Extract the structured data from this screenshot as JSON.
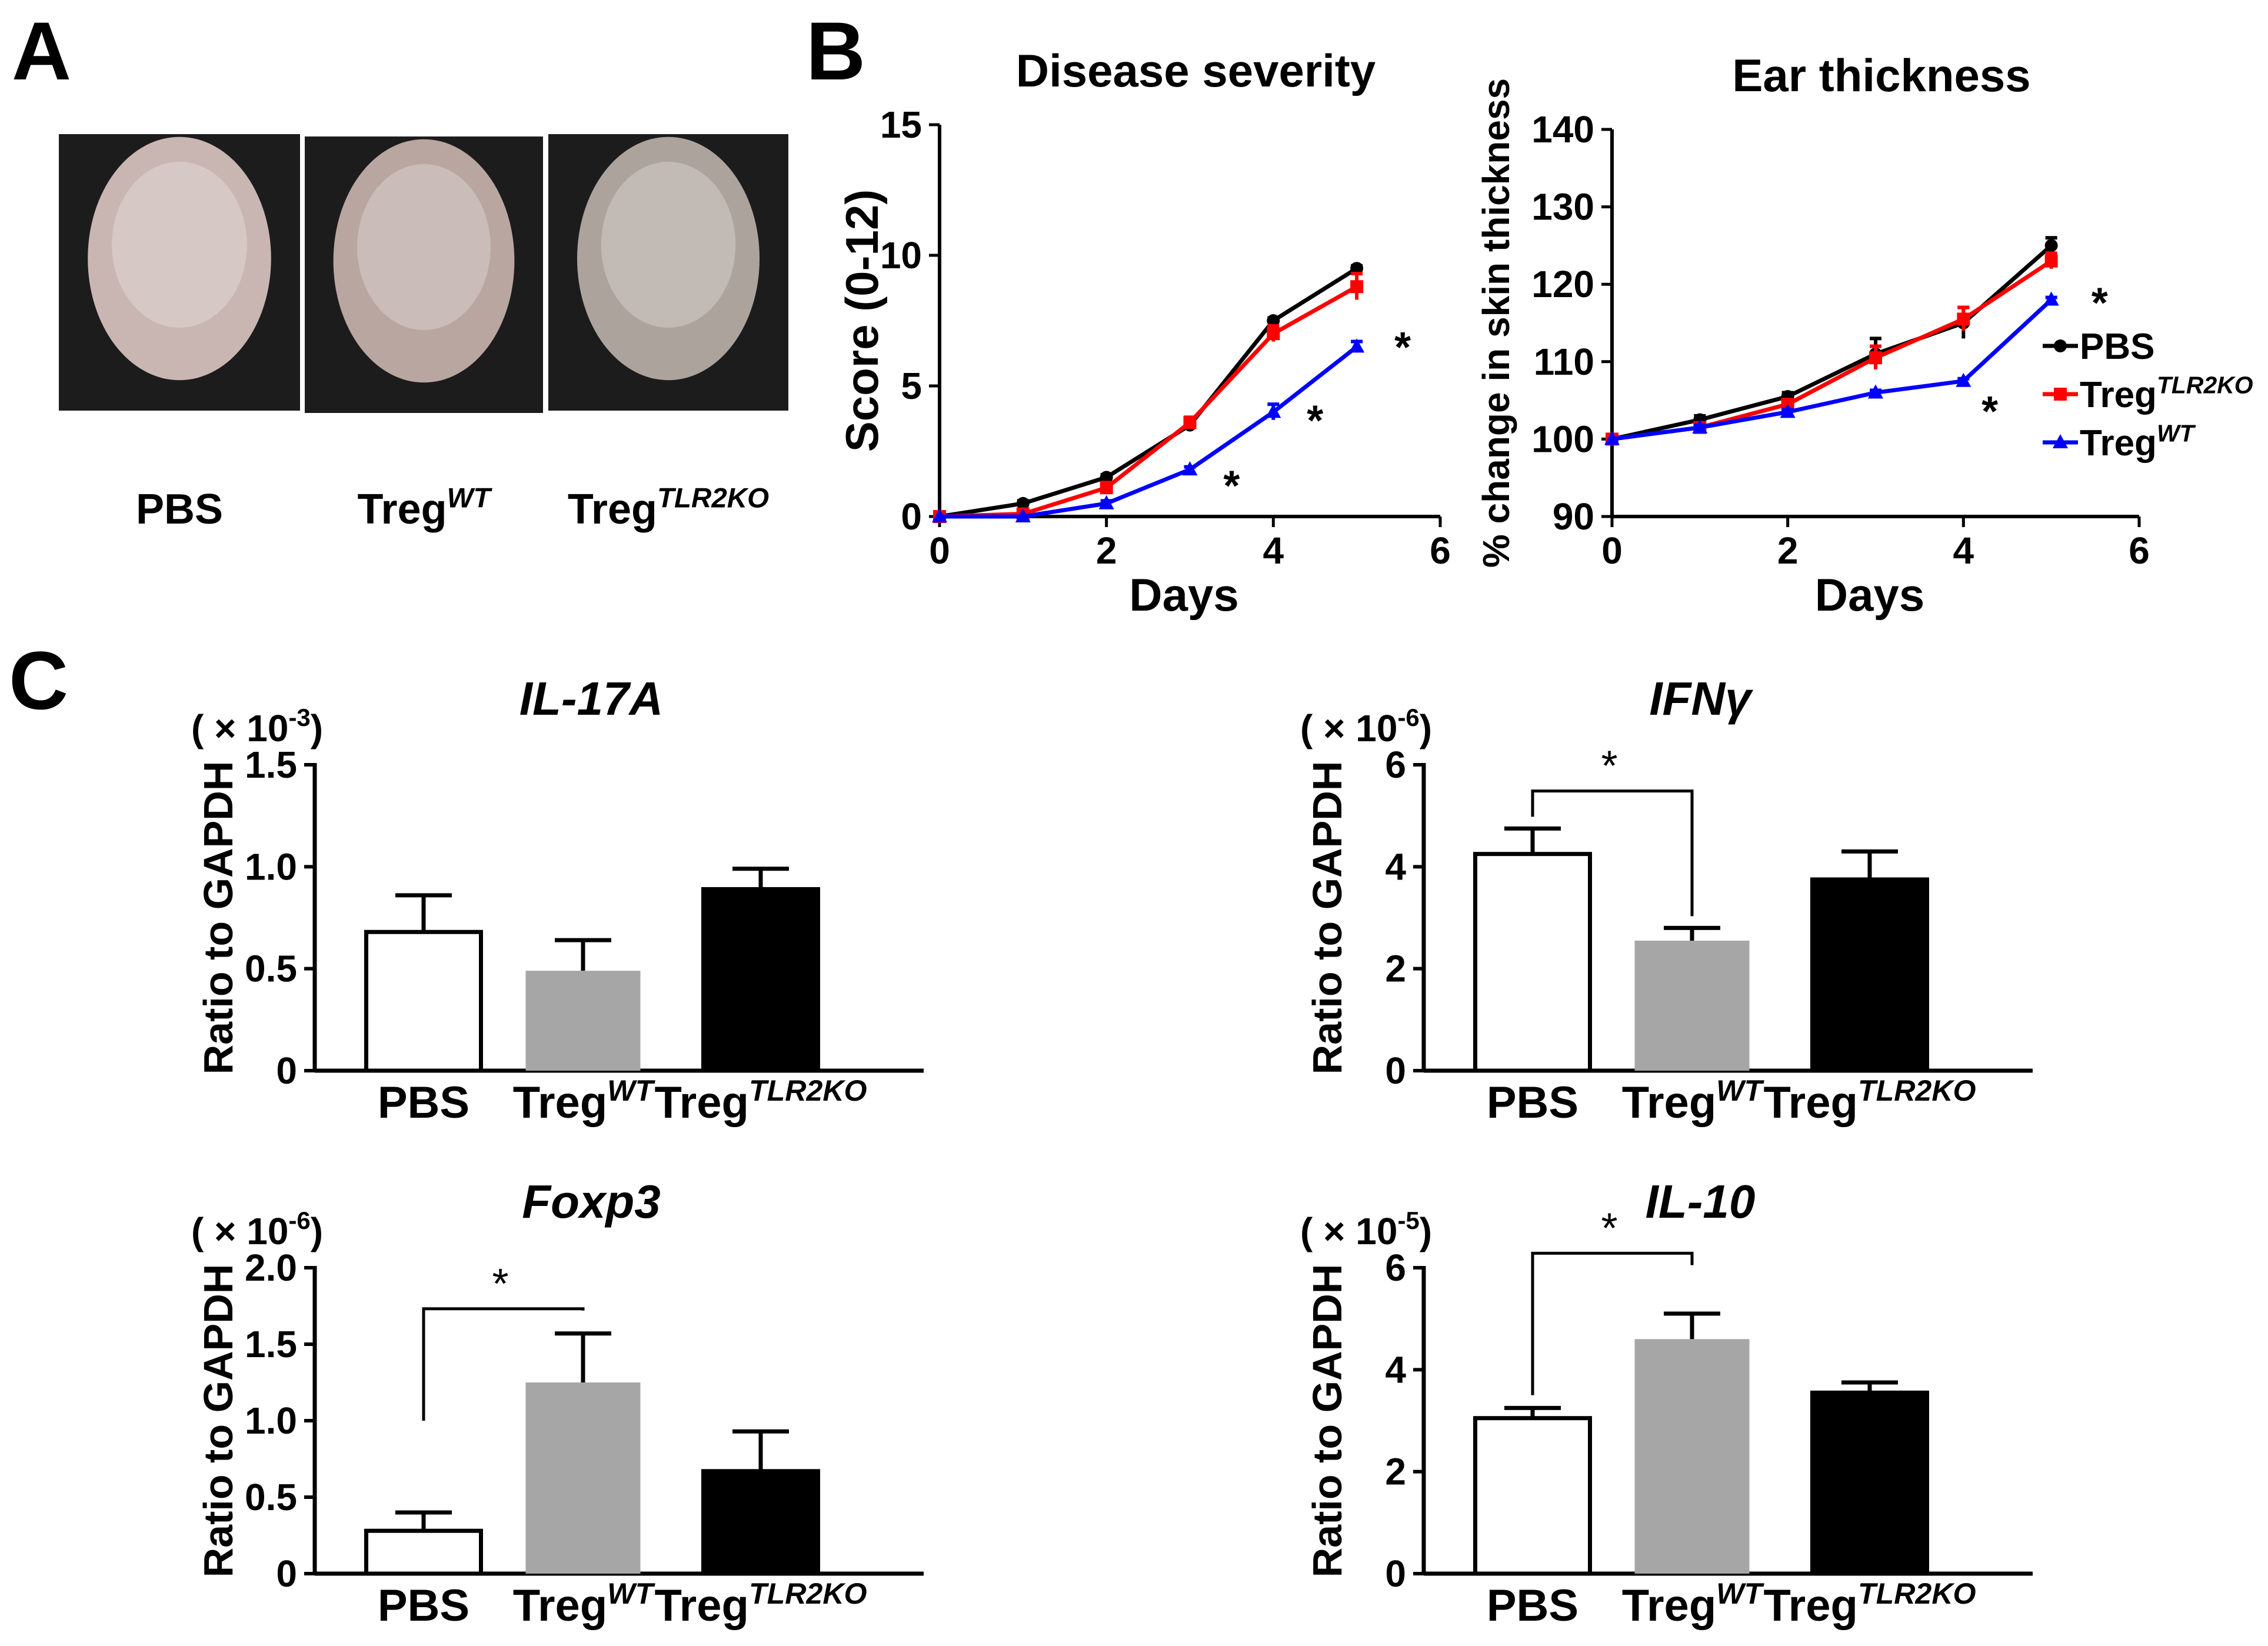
{
  "panel_labels": {
    "a": "A",
    "b": "B",
    "c": "C"
  },
  "panel_a": {
    "images": [
      {
        "label_main": "PBS",
        "label_sup": "",
        "skin": "#c9b6b2"
      },
      {
        "label_main": "Treg",
        "label_sup": "WT",
        "skin": "#b9a6a0"
      },
      {
        "label_main": "Treg",
        "label_sup": "TLR2KO",
        "skin": "#aca39d"
      }
    ]
  },
  "legend": [
    {
      "main": "PBS",
      "sup": "",
      "color": "#000000",
      "marker": "circle"
    },
    {
      "main": "Treg",
      "sup": "TLR2KO",
      "color": "#ff0000",
      "marker": "square"
    },
    {
      "main": "Treg",
      "sup": "WT",
      "color": "#0000ff",
      "marker": "triangle"
    }
  ],
  "chart_data": [
    {
      "type": "line",
      "title": "Disease severity",
      "xlabel": "Days",
      "ylabel": "Score (0-12)",
      "xlim": [
        0,
        6
      ],
      "ylim": [
        0,
        15
      ],
      "xticks": [
        0,
        2,
        4,
        6
      ],
      "yticks": [
        0,
        5,
        10,
        15
      ],
      "x": [
        0,
        1,
        2,
        3,
        4,
        5
      ],
      "series": [
        {
          "name": "PBS",
          "color": "#000000",
          "marker": "circle",
          "values": [
            0,
            0.5,
            1.5,
            3.5,
            7.5,
            9.5
          ],
          "err": [
            0,
            0.1,
            0.1,
            0.1,
            0.1,
            0.1
          ]
        },
        {
          "name": "TregTLR2KO",
          "color": "#ff0000",
          "marker": "square",
          "values": [
            0,
            0.1,
            1.1,
            3.6,
            7.0,
            8.8
          ],
          "err": [
            0,
            0.1,
            0.2,
            0.2,
            0.3,
            0.5
          ]
        },
        {
          "name": "TregWT",
          "color": "#0000ff",
          "marker": "triangle",
          "values": [
            0,
            0,
            0.5,
            1.8,
            4.0,
            6.5
          ],
          "err": [
            0,
            0,
            0.1,
            0.1,
            0.3,
            0.2
          ]
        }
      ],
      "annotations": [
        {
          "text": "*",
          "x": 3.5,
          "y": 1.3
        },
        {
          "text": "*",
          "x": 4.5,
          "y": 3.8
        },
        {
          "text": "*",
          "x": 5.55,
          "y": 6.6
        }
      ]
    },
    {
      "type": "line",
      "title": "Ear thickness",
      "xlabel": "Days",
      "ylabel": "% change in skin thickness",
      "xlim": [
        0,
        6
      ],
      "ylim": [
        90,
        140
      ],
      "xticks": [
        0,
        2,
        4,
        6
      ],
      "yticks": [
        90,
        100,
        110,
        120,
        130,
        140
      ],
      "x": [
        0,
        1,
        2,
        3,
        4,
        5
      ],
      "series": [
        {
          "name": "PBS",
          "color": "#000000",
          "marker": "circle",
          "values": [
            100,
            102.5,
            105.5,
            111,
            115,
            125
          ],
          "err": [
            0,
            0.5,
            0.5,
            2,
            2,
            1
          ]
        },
        {
          "name": "TregTLR2KO",
          "color": "#ff0000",
          "marker": "square",
          "values": [
            100,
            101.5,
            104.5,
            110.5,
            115.5,
            123
          ],
          "err": [
            0,
            0.5,
            0.5,
            1.5,
            1.5,
            1
          ]
        },
        {
          "name": "TregWT",
          "color": "#0000ff",
          "marker": "triangle",
          "values": [
            100,
            101.5,
            103.5,
            106,
            107.5,
            118
          ],
          "err": [
            0,
            0.3,
            0.3,
            0.3,
            0.3,
            0.3
          ]
        }
      ],
      "annotations": [
        {
          "text": "*",
          "x": 5.55,
          "y": 118
        },
        {
          "text": "*",
          "x": 4.3,
          "y": 104
        }
      ]
    },
    {
      "type": "bar",
      "title": "IL-17A",
      "multiplier_prefix": "( × 10",
      "multiplier_exp": "-3",
      "multiplier_suffix": ")",
      "ylabel": "Ratio to GAPDH",
      "ylim": [
        0,
        1.5
      ],
      "yticks": [
        0,
        0.5,
        1.0,
        1.5
      ],
      "ytick_labels": [
        "0",
        "0.5",
        "1.0",
        "1.5"
      ],
      "categories": [
        {
          "main": "PBS",
          "sup": ""
        },
        {
          "main": "Treg",
          "sup": "WT"
        },
        {
          "main": "Treg",
          "sup": "TLR2KO"
        }
      ],
      "values": [
        0.68,
        0.49,
        0.89
      ],
      "errors": [
        0.18,
        0.15,
        0.1
      ],
      "fills": [
        "#ffffff",
        "#a6a6a6",
        "#000000"
      ],
      "significance": []
    },
    {
      "type": "bar",
      "title": "IFNγ",
      "multiplier_prefix": "( × 10",
      "multiplier_exp": "-6",
      "multiplier_suffix": ")",
      "ylabel": "Ratio to GAPDH",
      "ylim": [
        0,
        6
      ],
      "yticks": [
        0,
        2,
        4,
        6
      ],
      "ytick_labels": [
        "0",
        "2",
        "4",
        "6"
      ],
      "categories": [
        {
          "main": "PBS",
          "sup": ""
        },
        {
          "main": "Treg",
          "sup": "WT"
        },
        {
          "main": "Treg",
          "sup": "TLR2KO"
        }
      ],
      "values": [
        4.25,
        2.55,
        3.75
      ],
      "errors": [
        0.5,
        0.25,
        0.55
      ],
      "fills": [
        "#ffffff",
        "#a6a6a6",
        "#000000"
      ],
      "significance": [
        {
          "from": 0,
          "to": 1,
          "label": "*",
          "y": 5.6
        }
      ]
    },
    {
      "type": "bar",
      "title": "Foxp3",
      "multiplier_prefix": "( × 10",
      "multiplier_exp": "-6",
      "multiplier_suffix": ")",
      "ylabel": "Ratio to GAPDH",
      "ylim": [
        0,
        2.0
      ],
      "yticks": [
        0,
        0.5,
        1.0,
        1.5,
        2.0
      ],
      "ytick_labels": [
        "0",
        "0.5",
        "1.0",
        "1.5",
        "2.0"
      ],
      "categories": [
        {
          "main": "PBS",
          "sup": ""
        },
        {
          "main": "Treg",
          "sup": "WT"
        },
        {
          "main": "Treg",
          "sup": "TLR2KO"
        }
      ],
      "values": [
        0.28,
        1.25,
        0.67
      ],
      "errors": [
        0.12,
        0.32,
        0.26
      ],
      "fills": [
        "#ffffff",
        "#a6a6a6",
        "#000000"
      ],
      "significance": [
        {
          "from": 0,
          "to": 1,
          "label": "*",
          "y": 1.77,
          "left_end": 1.0,
          "right_end": 1.72
        }
      ]
    },
    {
      "type": "bar",
      "title": "IL-10",
      "multiplier_prefix": "( × 10",
      "multiplier_exp": "-5",
      "multiplier_suffix": ")",
      "ylabel": "Ratio to GAPDH",
      "ylim": [
        0,
        6
      ],
      "yticks": [
        0,
        2,
        4,
        6
      ],
      "ytick_labels": [
        "0",
        "2",
        "4",
        "6"
      ],
      "categories": [
        {
          "main": "PBS",
          "sup": ""
        },
        {
          "main": "Treg",
          "sup": "WT"
        },
        {
          "main": "Treg",
          "sup": "TLR2KO"
        }
      ],
      "values": [
        3.05,
        4.6,
        3.55
      ],
      "errors": [
        0.2,
        0.5,
        0.2
      ],
      "fills": [
        "#ffffff",
        "#a6a6a6",
        "#000000"
      ],
      "significance": [
        {
          "from": 0,
          "to": 1,
          "label": "*",
          "y": 6.4,
          "left_end": 3.5,
          "right_end": 6.05
        }
      ]
    }
  ]
}
